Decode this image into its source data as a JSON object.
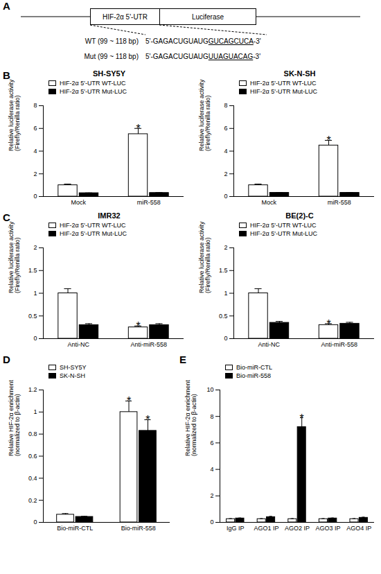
{
  "panel_a": {
    "annotation": "A",
    "boxes": [
      "HIF-2α 5'-UTR",
      "Luciferase"
    ],
    "sequences": [
      {
        "label": "WT (99 ~ 118 bp)",
        "prefix": "5'-GAGACUGUAUG",
        "underlined": "GUCAGCUCA",
        "suffix": "-3'"
      },
      {
        "label": "Mut (99 ~ 118 bp)",
        "prefix": "5'-GAGACUGUAUG",
        "underlined": "UUAGUACAG",
        "suffix": "-3'"
      }
    ]
  },
  "chart_data": [
    {
      "type": "bar",
      "annotations": [
        "B"
      ],
      "title": "SH-SY5Y",
      "ylabel": "Relative luciferase activity\n(Firefly/Renilla ratio)",
      "categories": [
        "Mock",
        "miR-558"
      ],
      "series": [
        {
          "name": "HIF-2α 5'-UTR WT-LUC",
          "color": "#ffffff",
          "values": [
            1.0,
            5.5
          ],
          "errors": [
            0.1,
            0.5
          ],
          "annotations": [
            null,
            "*"
          ]
        },
        {
          "name": "HIF-2α 5'-UTR Mut-LUC",
          "color": "#000000",
          "values": [
            0.3,
            0.32
          ],
          "errors": [
            0.02,
            0.03
          ],
          "annotations": [
            null,
            null
          ]
        }
      ],
      "ylim": [
        0,
        8
      ],
      "yticks": [
        0,
        2,
        4,
        6,
        8
      ],
      "legend": "top"
    },
    {
      "type": "bar",
      "title": "SK-N-SH",
      "ylabel": "Relative luciferase activity\n(Firefly/Renilla ratio)",
      "categories": [
        "Mock",
        "miR-558"
      ],
      "series": [
        {
          "name": "HIF-2α 5'-UTR WT-LUC",
          "color": "#ffffff",
          "values": [
            1.0,
            4.5
          ],
          "errors": [
            0.1,
            0.45
          ],
          "annotations": [
            null,
            "*"
          ]
        },
        {
          "name": "HIF-2α 5'-UTR Mut-LUC",
          "color": "#000000",
          "values": [
            0.33,
            0.33
          ],
          "errors": [
            0.03,
            0.03
          ],
          "annotations": [
            null,
            null
          ]
        }
      ],
      "ylim": [
        0,
        8
      ],
      "yticks": [
        0,
        2,
        4,
        6,
        8
      ],
      "legend": "top"
    },
    {
      "type": "bar",
      "annotations": [
        "C"
      ],
      "title": "IMR32",
      "ylabel": "Relative luciferase activity\n(Firefly/Renilla ratio)",
      "categories": [
        "Anti-NC",
        "Anti-miR-558"
      ],
      "series": [
        {
          "name": "HIF-2α 5'-UTR WT-LUC",
          "color": "#ffffff",
          "values": [
            1.0,
            0.25
          ],
          "errors": [
            0.1,
            0.03
          ],
          "annotations": [
            null,
            "*"
          ]
        },
        {
          "name": "HIF-2α 5'-UTR Mut-LUC",
          "color": "#000000",
          "values": [
            0.3,
            0.3
          ],
          "errors": [
            0.03,
            0.03
          ],
          "annotations": [
            null,
            null
          ]
        }
      ],
      "ylim": [
        0,
        2
      ],
      "yticks": [
        0,
        0.5,
        1,
        1.5,
        2
      ],
      "legend": "top"
    },
    {
      "type": "bar",
      "title": "BE(2)-C",
      "ylabel": "Relative luciferase activity\n(Firefly/Renilla ratio)",
      "categories": [
        "Anti-NC",
        "Anti-miR-558"
      ],
      "series": [
        {
          "name": "HIF-2α 5'-UTR WT-LUC",
          "color": "#ffffff",
          "values": [
            1.0,
            0.3
          ],
          "errors": [
            0.1,
            0.03
          ],
          "annotations": [
            null,
            "*"
          ]
        },
        {
          "name": "HIF-2α 5'-UTR Mut-LUC",
          "color": "#000000",
          "values": [
            0.35,
            0.33
          ],
          "errors": [
            0.03,
            0.03
          ],
          "annotations": [
            null,
            null
          ]
        }
      ],
      "ylim": [
        0,
        2
      ],
      "yticks": [
        0,
        0.5,
        1,
        1.5,
        2
      ],
      "legend": "top"
    },
    {
      "type": "bar",
      "annotations": [
        "D"
      ],
      "ylabel": "Relative HIF-2α enrichment\n(normalized to β-actin)",
      "categories": [
        "Bio-miR-CTL",
        "Bio-miR-558"
      ],
      "series": [
        {
          "name": "SH-SY5Y",
          "color": "#ffffff",
          "values": [
            0.07,
            1.0
          ],
          "errors": [
            0.01,
            0.1
          ],
          "annotations": [
            null,
            "*"
          ]
        },
        {
          "name": "SK-N-SH",
          "color": "#000000",
          "values": [
            0.05,
            0.83
          ],
          "errors": [
            0.005,
            0.1
          ],
          "annotations": [
            null,
            "*"
          ]
        }
      ],
      "ylim": [
        0,
        1.2
      ],
      "yticks": [
        0,
        0.2,
        0.4,
        0.6,
        0.8,
        1,
        1.2
      ],
      "legend": "top"
    },
    {
      "type": "bar",
      "annotations": [
        "E"
      ],
      "ylabel": "Relative HIF-2α enrichment\n(normalized to β-actin)",
      "categories": [
        "IgG IP",
        "AGO1 IP",
        "AGO2 IP",
        "AGO3 IP",
        "AGO4 IP"
      ],
      "series": [
        {
          "name": "Bio-miR-CTL",
          "color": "#ffffff",
          "values": [
            0.25,
            0.25,
            0.25,
            0.25,
            0.25
          ],
          "errors": [
            0.03,
            0.03,
            0.03,
            0.03,
            0.03
          ],
          "annotations": [
            null,
            null,
            null,
            null,
            null
          ]
        },
        {
          "name": "Bio-miR-558",
          "color": "#000000",
          "values": [
            0.3,
            0.4,
            7.2,
            0.3,
            0.35
          ],
          "errors": [
            0.03,
            0.05,
            0.7,
            0.03,
            0.04
          ],
          "annotations": [
            null,
            null,
            "*",
            null,
            null
          ]
        }
      ],
      "ylim": [
        0,
        10
      ],
      "yticks": [
        0,
        2,
        4,
        6,
        8,
        10
      ],
      "legend": "top"
    }
  ]
}
